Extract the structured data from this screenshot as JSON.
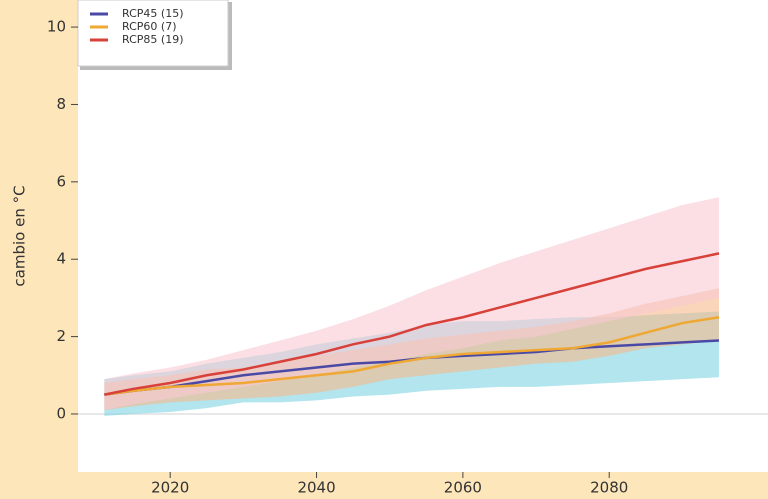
{
  "chart_data": {
    "type": "line",
    "y_label": "cambio en °C",
    "x": [
      2011,
      2015,
      2020,
      2025,
      2030,
      2035,
      2040,
      2045,
      2050,
      2055,
      2060,
      2065,
      2070,
      2075,
      2080,
      2085,
      2090,
      2095
    ],
    "xlim": [
      2007.4,
      2101.7
    ],
    "xticks": [
      2020,
      2040,
      2060,
      2080
    ],
    "ylim": [
      -1.5,
      10.7
    ],
    "yticks": [
      0,
      2,
      4,
      6,
      8,
      10
    ],
    "legend": "top-left",
    "series": [
      {
        "name": "RCP45 (15)",
        "color": "#4a4aa6",
        "band_color": "#7ed3e2",
        "values": [
          0.5,
          0.6,
          0.7,
          0.85,
          1.0,
          1.1,
          1.2,
          1.3,
          1.35,
          1.45,
          1.5,
          1.55,
          1.6,
          1.7,
          1.75,
          1.8,
          1.85,
          1.9
        ],
        "lower": [
          -0.05,
          0.0,
          0.05,
          0.15,
          0.3,
          0.3,
          0.35,
          0.45,
          0.5,
          0.6,
          0.65,
          0.7,
          0.7,
          0.75,
          0.8,
          0.85,
          0.9,
          0.95
        ],
        "upper": [
          0.9,
          1.0,
          1.1,
          1.3,
          1.45,
          1.6,
          1.8,
          1.95,
          2.1,
          2.3,
          2.4,
          2.4,
          2.45,
          2.5,
          2.5,
          2.55,
          2.6,
          2.65
        ]
      },
      {
        "name": "RCP60 (7)",
        "color": "#eea833",
        "band_color": "#f6b98b",
        "values": [
          0.5,
          0.6,
          0.7,
          0.75,
          0.8,
          0.9,
          1.0,
          1.1,
          1.3,
          1.45,
          1.55,
          1.6,
          1.65,
          1.7,
          1.85,
          2.1,
          2.35,
          2.5
        ],
        "lower": [
          0.1,
          0.2,
          0.3,
          0.35,
          0.4,
          0.45,
          0.55,
          0.7,
          0.9,
          1.0,
          1.1,
          1.2,
          1.3,
          1.35,
          1.5,
          1.7,
          1.8,
          1.9
        ],
        "upper": [
          0.8,
          0.9,
          1.0,
          1.15,
          1.2,
          1.35,
          1.5,
          1.65,
          1.8,
          1.95,
          2.05,
          2.15,
          2.25,
          2.4,
          2.6,
          2.85,
          3.05,
          3.25
        ]
      },
      {
        "name": "RCP85 (19)",
        "color": "#d8403a",
        "band_color": "#f9cad2",
        "values": [
          0.5,
          0.65,
          0.8,
          1.0,
          1.15,
          1.35,
          1.55,
          1.8,
          2.0,
          2.3,
          2.5,
          2.75,
          3.0,
          3.25,
          3.5,
          3.75,
          3.95,
          4.15
        ],
        "lower": [
          0.1,
          0.25,
          0.4,
          0.55,
          0.7,
          0.85,
          1.0,
          1.2,
          1.35,
          1.55,
          1.7,
          1.9,
          2.0,
          2.2,
          2.4,
          2.6,
          2.8,
          3.0
        ],
        "upper": [
          0.9,
          1.05,
          1.2,
          1.4,
          1.65,
          1.9,
          2.15,
          2.45,
          2.8,
          3.2,
          3.55,
          3.9,
          4.2,
          4.5,
          4.8,
          5.1,
          5.4,
          5.6
        ]
      }
    ]
  }
}
